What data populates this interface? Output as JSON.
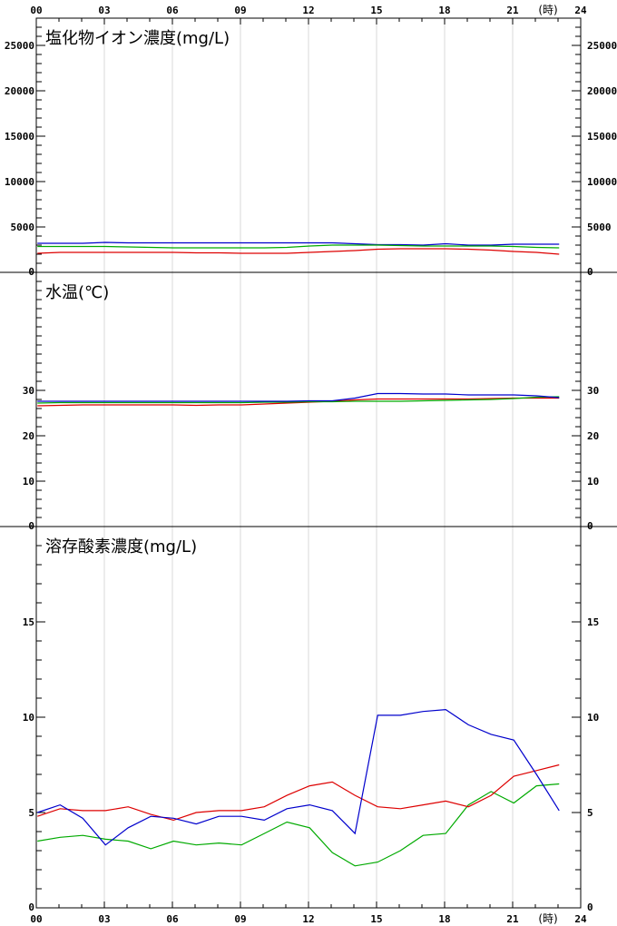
{
  "hour_ticks": [
    "00",
    "03",
    "06",
    "09",
    "12",
    "15",
    "18",
    "21",
    "24"
  ],
  "hour_unit": "(時)",
  "chart_data": [
    {
      "type": "line",
      "title": "塩化物イオン濃度(mg/L)",
      "ylim": [
        0,
        28000
      ],
      "y_tick_labels": [
        {
          "v": 0,
          "t": "0"
        },
        {
          "v": 5000,
          "t": "5000"
        },
        {
          "v": 10000,
          "t": "10000"
        },
        {
          "v": 15000,
          "t": "15000"
        },
        {
          "v": 20000,
          "t": "20000"
        },
        {
          "v": 25000,
          "t": "25000"
        }
      ],
      "minor_step": 1000,
      "x": [
        0,
        1,
        2,
        3,
        4,
        5,
        6,
        7,
        8,
        9,
        10,
        11,
        12,
        13,
        14,
        15,
        16,
        17,
        18,
        19,
        20,
        21,
        22,
        23
      ],
      "series": [
        {
          "color": "#0000cc",
          "values": [
            3200,
            3200,
            3200,
            3300,
            3250,
            3250,
            3250,
            3250,
            3250,
            3250,
            3250,
            3250,
            3250,
            3250,
            3150,
            3050,
            3050,
            3000,
            3150,
            3000,
            3000,
            3100,
            3100,
            3100
          ]
        },
        {
          "color": "#00aa00",
          "values": [
            2850,
            2850,
            2850,
            2850,
            2800,
            2750,
            2700,
            2700,
            2700,
            2700,
            2700,
            2750,
            2900,
            3000,
            3000,
            3000,
            2950,
            2900,
            2900,
            2900,
            2900,
            2850,
            2750,
            2700
          ]
        },
        {
          "color": "#dd0000",
          "values": [
            2100,
            2200,
            2200,
            2200,
            2200,
            2200,
            2200,
            2150,
            2150,
            2100,
            2100,
            2100,
            2200,
            2300,
            2400,
            2550,
            2600,
            2600,
            2600,
            2550,
            2450,
            2300,
            2200,
            2000
          ]
        }
      ]
    },
    {
      "type": "line",
      "title": "水温(℃)",
      "ylim": [
        0,
        56
      ],
      "y_tick_labels": [
        {
          "v": 0,
          "t": "0"
        },
        {
          "v": 10,
          "t": "10"
        },
        {
          "v": 20,
          "t": "20"
        },
        {
          "v": 30,
          "t": "30"
        }
      ],
      "minor_step": 2,
      "x": [
        0,
        1,
        2,
        3,
        4,
        5,
        6,
        7,
        8,
        9,
        10,
        11,
        12,
        13,
        14,
        15,
        16,
        17,
        18,
        19,
        20,
        21,
        22,
        23
      ],
      "series": [
        {
          "color": "#dd0000",
          "values": [
            26.6,
            26.7,
            26.8,
            26.8,
            26.8,
            26.8,
            26.8,
            26.7,
            26.8,
            26.8,
            27.0,
            27.2,
            27.4,
            27.6,
            27.9,
            28.1,
            28.1,
            28.1,
            28.1,
            28.1,
            28.2,
            28.3,
            28.3,
            28.3
          ]
        },
        {
          "color": "#00aa00",
          "values": [
            27.2,
            27.3,
            27.3,
            27.3,
            27.3,
            27.3,
            27.3,
            27.3,
            27.3,
            27.3,
            27.4,
            27.4,
            27.5,
            27.5,
            27.6,
            27.6,
            27.6,
            27.7,
            27.8,
            27.9,
            28.0,
            28.2,
            28.5,
            28.6
          ]
        },
        {
          "color": "#0000cc",
          "values": [
            27.6,
            27.6,
            27.6,
            27.6,
            27.6,
            27.6,
            27.6,
            27.6,
            27.6,
            27.6,
            27.6,
            27.6,
            27.7,
            27.7,
            28.3,
            29.3,
            29.3,
            29.2,
            29.2,
            29.0,
            29.0,
            29.0,
            28.8,
            28.4
          ]
        }
      ]
    },
    {
      "type": "line",
      "title": "溶存酸素濃度(mg/L)",
      "ylim": [
        0,
        20
      ],
      "y_tick_labels": [
        {
          "v": 0,
          "t": "0"
        },
        {
          "v": 5,
          "t": "5"
        },
        {
          "v": 10,
          "t": "10"
        },
        {
          "v": 15,
          "t": "15"
        }
      ],
      "minor_step": 1,
      "x": [
        0,
        1,
        2,
        3,
        4,
        5,
        6,
        7,
        8,
        9,
        10,
        11,
        12,
        13,
        14,
        15,
        16,
        17,
        18,
        19,
        20,
        21,
        22,
        23
      ],
      "series": [
        {
          "color": "#00aa00",
          "values": [
            3.5,
            3.7,
            3.8,
            3.6,
            3.5,
            3.1,
            3.5,
            3.3,
            3.4,
            3.3,
            3.9,
            4.5,
            4.2,
            2.9,
            2.2,
            2.4,
            3.0,
            3.8,
            3.9,
            5.4,
            6.1,
            5.5,
            6.4,
            6.5
          ]
        },
        {
          "color": "#dd0000",
          "values": [
            4.8,
            5.2,
            5.1,
            5.1,
            5.3,
            4.9,
            4.6,
            5.0,
            5.1,
            5.1,
            5.3,
            5.9,
            6.4,
            6.6,
            5.9,
            5.3,
            5.2,
            5.4,
            5.6,
            5.3,
            5.9,
            6.9,
            7.2,
            7.5
          ]
        },
        {
          "color": "#0000cc",
          "values": [
            5.0,
            5.4,
            4.7,
            3.3,
            4.2,
            4.8,
            4.7,
            4.4,
            4.8,
            4.8,
            4.6,
            5.2,
            5.4,
            5.1,
            3.9,
            10.1,
            10.1,
            10.3,
            10.4,
            9.6,
            9.1,
            8.8,
            7.0,
            5.1
          ]
        }
      ]
    }
  ]
}
